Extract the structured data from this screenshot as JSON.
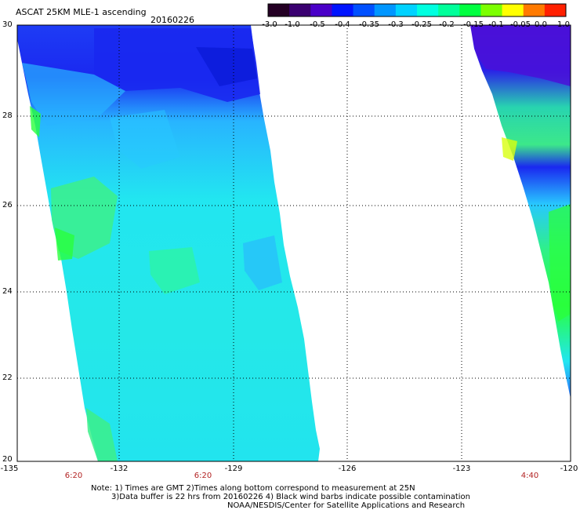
{
  "header": {
    "title": "ASCAT 25KM MLE-1 ascending",
    "date": "20160226"
  },
  "colorbar": {
    "labels": [
      "-3.0",
      "-1.0",
      "-0.5",
      "-0.4",
      "-0.35",
      "-0.3",
      "-0.25",
      "-0.2",
      "-0.15",
      "-0.1",
      "-0.05",
      "0.0",
      "1.0"
    ],
    "colors": [
      "#240024",
      "#3a0070",
      "#4a00c8",
      "#0014ff",
      "#0050ff",
      "#0096ff",
      "#00d2ff",
      "#00ffe0",
      "#00ff9a",
      "#00ff40",
      "#7cff00",
      "#ffff00",
      "#ff7a00",
      "#ff2000"
    ]
  },
  "map": {
    "lat_labels": [
      "30",
      "28",
      "26",
      "24",
      "22",
      "20"
    ],
    "lon_labels": [
      "-135",
      "-132",
      "-129",
      "-126",
      "-123",
      "-120"
    ],
    "time_labels": [
      "6:20",
      "6:20",
      "4:40"
    ],
    "swath_colors": {
      "deep_blue": "#1a28f0",
      "mid_blue": "#2f6eff",
      "light_blue": "#28b4ff",
      "cyan": "#22e6f0",
      "aqua": "#2ef5c8",
      "green": "#3cf08a",
      "bright_green": "#29ff3c",
      "violet": "#4a10d8",
      "yellow": "#d8ff10"
    }
  },
  "notes": {
    "line1": "Note: 1) Times are GMT 2)Times along bottom correspond to measurement at 25N",
    "line2": "3)Data buffer is 22 hrs from 20160226 4) Black wind barbs indicate possible contamination",
    "line3": "NOAA/NESDIS/Center for Satellite Applications and Research"
  }
}
